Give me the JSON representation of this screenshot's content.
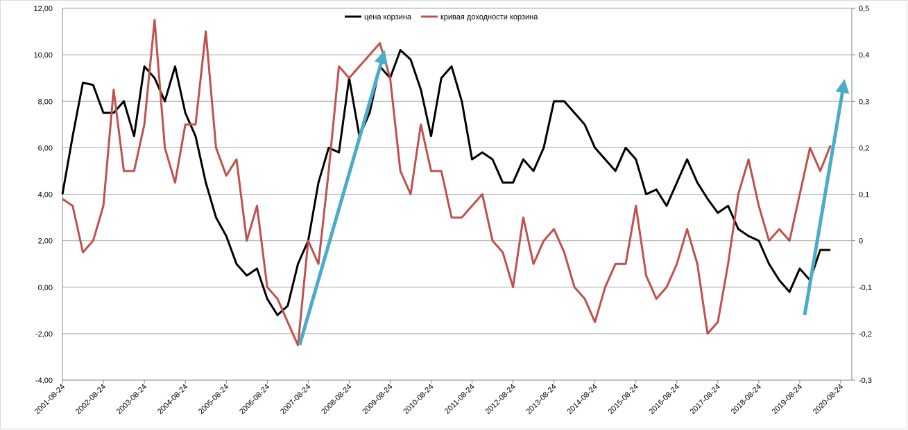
{
  "chart_data": {
    "type": "line",
    "categories": [
      "2001-08-24",
      null,
      null,
      null,
      "2002-08-24",
      null,
      null,
      null,
      "2003-08-24",
      null,
      null,
      null,
      "2004-08-24",
      null,
      null,
      null,
      "2005-08-24",
      null,
      null,
      null,
      "2006-08-24",
      null,
      null,
      null,
      "2007-08-24",
      null,
      null,
      null,
      "2008-08-24",
      null,
      null,
      null,
      "2009-08-24",
      null,
      null,
      null,
      "2010-08-24",
      null,
      null,
      null,
      "2011-08-24",
      null,
      null,
      null,
      "2012-08-24",
      null,
      null,
      null,
      "2013-08-24",
      null,
      null,
      null,
      "2014-08-24",
      null,
      null,
      null,
      "2015-08-24",
      null,
      null,
      null,
      "2016-08-24",
      null,
      null,
      null,
      "2017-08-24",
      null,
      null,
      null,
      "2018-08-24",
      null,
      null,
      null,
      "2019-08-24",
      null,
      null,
      null,
      "2020-08-24"
    ],
    "series": [
      {
        "name": "цена корзина",
        "color": "#000000",
        "values": [
          4.0,
          6.5,
          8.8,
          8.7,
          7.5,
          7.5,
          8.0,
          6.5,
          9.5,
          9.0,
          8.0,
          9.5,
          7.5,
          6.5,
          4.5,
          3.0,
          2.2,
          1.0,
          0.5,
          0.8,
          -0.5,
          -1.2,
          -0.8,
          1.0,
          2.0,
          4.5,
          6.0,
          5.8,
          9.0,
          6.5,
          7.5,
          9.5,
          9.0,
          10.2,
          9.8,
          8.5,
          6.5,
          9.0,
          9.5,
          8.0,
          5.5,
          5.8,
          5.5,
          4.5,
          4.5,
          5.5,
          5.0,
          6.0,
          8.0,
          8.0,
          7.5,
          7.0,
          6.0,
          5.5,
          5.0,
          6.0,
          5.5,
          4.0,
          4.2,
          3.5,
          4.5,
          5.5,
          4.5,
          3.8,
          3.2,
          3.5,
          2.5,
          2.2,
          2.0,
          1.0,
          0.3,
          -0.2,
          0.8,
          0.3,
          1.6,
          1.6,
          null
        ]
      },
      {
        "name": "кривая доходности корзина",
        "color": "#c0504d",
        "axis": "y2",
        "values": [
          0.09,
          0.075,
          -0.025,
          0.0,
          0.075,
          0.325,
          0.15,
          0.15,
          0.25,
          0.475,
          0.2,
          0.125,
          0.25,
          0.25,
          0.45,
          0.2,
          0.14,
          0.175,
          0.0,
          0.075,
          -0.1,
          -0.125,
          -0.175,
          -0.225,
          0.0,
          -0.05,
          0.15,
          0.375,
          0.35,
          0.375,
          0.4,
          0.425,
          0.35,
          0.15,
          0.1,
          0.25,
          0.15,
          0.15,
          0.05,
          0.05,
          0.075,
          0.1,
          0.0,
          -0.025,
          -0.1,
          0.05,
          -0.05,
          0.0,
          0.025,
          -0.025,
          -0.1,
          -0.125,
          -0.175,
          -0.1,
          -0.05,
          -0.05,
          0.075,
          -0.075,
          -0.125,
          -0.1,
          -0.05,
          0.025,
          -0.05,
          -0.2,
          -0.175,
          -0.05,
          0.1,
          0.175,
          0.075,
          0.0,
          0.025,
          0.0,
          0.1,
          0.2,
          0.15,
          0.205,
          null
        ]
      }
    ],
    "ylim": [
      -4,
      12
    ],
    "yticks": [
      {
        "value": -4,
        "label": "-4,00"
      },
      {
        "value": -2,
        "label": "-2,00"
      },
      {
        "value": 0,
        "label": "0,00"
      },
      {
        "value": 2,
        "label": "2,00"
      },
      {
        "value": 4,
        "label": "4,00"
      },
      {
        "value": 6,
        "label": "6,00"
      },
      {
        "value": 8,
        "label": "8,00"
      },
      {
        "value": 10,
        "label": "10,00"
      },
      {
        "value": 12,
        "label": "12,00"
      }
    ],
    "y2lim": [
      -0.3,
      0.5
    ],
    "y2ticks": [
      {
        "value": -0.3,
        "label": "-0,3"
      },
      {
        "value": -0.2,
        "label": "-0,2"
      },
      {
        "value": -0.1,
        "label": "-0,1"
      },
      0,
      {
        "value": 0.1,
        "label": "0,1"
      },
      {
        "value": 0.2,
        "label": "0,2"
      },
      {
        "value": 0.3,
        "label": "0,3"
      },
      {
        "value": 0.4,
        "label": "0,4"
      },
      {
        "value": 0.5,
        "label": "0,5"
      }
    ],
    "grid": true,
    "legend": "top"
  }
}
